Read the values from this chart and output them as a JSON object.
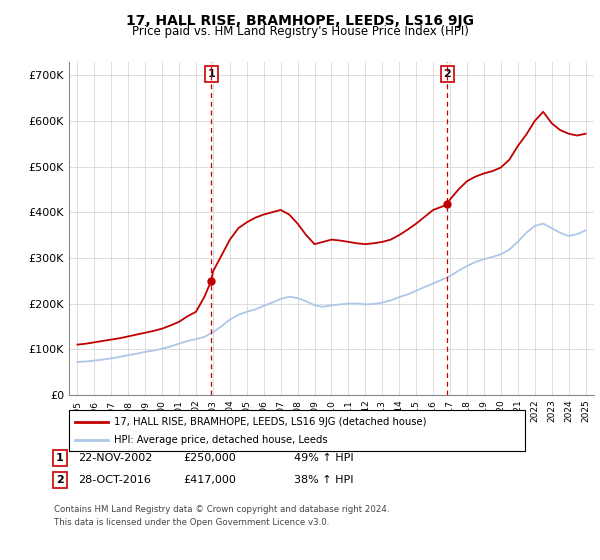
{
  "title": "17, HALL RISE, BRAMHOPE, LEEDS, LS16 9JG",
  "subtitle": "Price paid vs. HM Land Registry's House Price Index (HPI)",
  "hpi_label": "HPI: Average price, detached house, Leeds",
  "property_label": "17, HALL RISE, BRAMHOPE, LEEDS, LS16 9JG (detached house)",
  "transaction1_date": "22-NOV-2002",
  "transaction1_price": "£250,000",
  "transaction1_hpi": "49% ↑ HPI",
  "transaction2_date": "28-OCT-2016",
  "transaction2_price": "£417,000",
  "transaction2_hpi": "38% ↑ HPI",
  "footnote1": "Contains HM Land Registry data © Crown copyright and database right 2024.",
  "footnote2": "This data is licensed under the Open Government Licence v3.0.",
  "hpi_color": "#aec6e8",
  "property_color": "#c00000",
  "transaction_line_color": "#cc0000",
  "ylim": [
    0,
    730000
  ],
  "yticks": [
    0,
    100000,
    200000,
    300000,
    400000,
    500000,
    600000,
    700000
  ],
  "ytick_labels": [
    "£0",
    "£100K",
    "£200K",
    "£300K",
    "£400K",
    "£500K",
    "£600K",
    "£700K"
  ],
  "years_hpi": [
    1995,
    1995.5,
    1996,
    1996.5,
    1997,
    1997.5,
    1998,
    1998.5,
    1999,
    1999.5,
    2000,
    2000.5,
    2001,
    2001.5,
    2002,
    2002.5,
    2003,
    2003.5,
    2004,
    2004.5,
    2005,
    2005.5,
    2006,
    2006.5,
    2007,
    2007.5,
    2008,
    2008.5,
    2009,
    2009.5,
    2010,
    2010.5,
    2011,
    2011.5,
    2012,
    2012.5,
    2013,
    2013.5,
    2014,
    2014.5,
    2015,
    2015.5,
    2016,
    2016.5,
    2017,
    2017.5,
    2018,
    2018.5,
    2019,
    2019.5,
    2020,
    2020.5,
    2021,
    2021.5,
    2022,
    2022.5,
    2023,
    2023.5,
    2024,
    2024.5,
    2025
  ],
  "hpi_values": [
    72000,
    73000,
    75000,
    77000,
    80000,
    83000,
    87000,
    90000,
    94000,
    97000,
    101000,
    106000,
    112000,
    118000,
    122000,
    127000,
    137000,
    150000,
    165000,
    175000,
    182000,
    187000,
    195000,
    202000,
    210000,
    215000,
    212000,
    205000,
    196000,
    193000,
    196000,
    198000,
    200000,
    200000,
    198000,
    199000,
    202000,
    207000,
    214000,
    220000,
    228000,
    236000,
    244000,
    252000,
    260000,
    272000,
    282000,
    291000,
    297000,
    302000,
    308000,
    318000,
    335000,
    355000,
    370000,
    375000,
    365000,
    355000,
    348000,
    352000,
    360000
  ],
  "years_property": [
    1995,
    1995.5,
    1996,
    1996.5,
    1997,
    1997.5,
    1998,
    1998.5,
    1999,
    1999.5,
    2000,
    2000.5,
    2001,
    2001.5,
    2002,
    2002.5,
    2002.9,
    2003,
    2003.5,
    2004,
    2004.5,
    2005,
    2005.5,
    2006,
    2006.5,
    2007,
    2007.5,
    2008,
    2008.5,
    2009,
    2009.5,
    2010,
    2010.5,
    2011,
    2011.5,
    2012,
    2012.5,
    2013,
    2013.5,
    2014,
    2014.5,
    2015,
    2015.5,
    2016,
    2016.5,
    2016.83,
    2017,
    2017.5,
    2018,
    2018.5,
    2019,
    2019.5,
    2020,
    2020.5,
    2021,
    2021.5,
    2022,
    2022.5,
    2023,
    2023.5,
    2024,
    2024.5,
    2025
  ],
  "property_values": [
    110000,
    112000,
    115000,
    118000,
    121000,
    124000,
    128000,
    132000,
    136000,
    140000,
    145000,
    152000,
    160000,
    172000,
    182000,
    215000,
    250000,
    270000,
    305000,
    340000,
    365000,
    378000,
    388000,
    395000,
    400000,
    405000,
    395000,
    375000,
    350000,
    330000,
    335000,
    340000,
    338000,
    335000,
    332000,
    330000,
    332000,
    335000,
    340000,
    350000,
    362000,
    375000,
    390000,
    405000,
    412000,
    417000,
    428000,
    450000,
    468000,
    478000,
    485000,
    490000,
    498000,
    515000,
    545000,
    570000,
    600000,
    620000,
    595000,
    580000,
    572000,
    568000,
    572000
  ],
  "transaction1_x": 2002.9,
  "transaction1_y": 250000,
  "transaction2_x": 2016.83,
  "transaction2_y": 417000,
  "xtick_years": [
    1995,
    1996,
    1997,
    1998,
    1999,
    2000,
    2001,
    2002,
    2003,
    2004,
    2005,
    2006,
    2007,
    2008,
    2009,
    2010,
    2011,
    2012,
    2013,
    2014,
    2015,
    2016,
    2017,
    2018,
    2019,
    2020,
    2021,
    2022,
    2023,
    2024,
    2025
  ],
  "xlim": [
    1994.5,
    2025.5
  ]
}
